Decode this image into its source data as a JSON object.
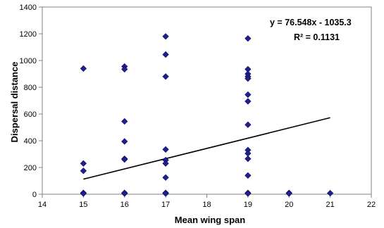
{
  "chart_data": {
    "type": "scatter",
    "xlabel": "Mean wing span",
    "ylabel": "Dispersal distance",
    "xlim": [
      14,
      22
    ],
    "ylim": [
      0,
      1400
    ],
    "x_ticks": [
      "14",
      "15",
      "16",
      "17",
      "18",
      "19",
      "20",
      "21",
      "22"
    ],
    "y_ticks": [
      "0",
      "200",
      "400",
      "600",
      "800",
      "1000",
      "1200",
      "1400"
    ],
    "grid": false,
    "legend": "none",
    "marker_color": "#1f1f8f",
    "trendline": {
      "type": "linear",
      "slope": 76.548,
      "intercept": -1035.3,
      "x_range": [
        15,
        21
      ],
      "equation_label": "y = 76.548x - 1035.3",
      "r2_label": "R² = 0.1131"
    },
    "points": [
      {
        "x": 15,
        "y": 940
      },
      {
        "x": 15,
        "y": 230
      },
      {
        "x": 15,
        "y": 175
      },
      {
        "x": 15,
        "y": 10
      },
      {
        "x": 15,
        "y": 5
      },
      {
        "x": 16,
        "y": 955
      },
      {
        "x": 16,
        "y": 935
      },
      {
        "x": 16,
        "y": 545
      },
      {
        "x": 16,
        "y": 395
      },
      {
        "x": 16,
        "y": 265
      },
      {
        "x": 16,
        "y": 260
      },
      {
        "x": 16,
        "y": 10
      },
      {
        "x": 16,
        "y": 5
      },
      {
        "x": 17,
        "y": 1180
      },
      {
        "x": 17,
        "y": 1045
      },
      {
        "x": 17,
        "y": 880
      },
      {
        "x": 17,
        "y": 335
      },
      {
        "x": 17,
        "y": 255
      },
      {
        "x": 17,
        "y": 230
      },
      {
        "x": 17,
        "y": 125
      },
      {
        "x": 17,
        "y": 10
      },
      {
        "x": 17,
        "y": 5
      },
      {
        "x": 19,
        "y": 1165
      },
      {
        "x": 19,
        "y": 935
      },
      {
        "x": 19,
        "y": 900
      },
      {
        "x": 19,
        "y": 880
      },
      {
        "x": 19,
        "y": 865
      },
      {
        "x": 19,
        "y": 745
      },
      {
        "x": 19,
        "y": 695
      },
      {
        "x": 19,
        "y": 520
      },
      {
        "x": 19,
        "y": 330
      },
      {
        "x": 19,
        "y": 305
      },
      {
        "x": 19,
        "y": 265
      },
      {
        "x": 19,
        "y": 140
      },
      {
        "x": 19,
        "y": 10
      },
      {
        "x": 19,
        "y": 5
      },
      {
        "x": 20,
        "y": 10
      },
      {
        "x": 20,
        "y": 5
      },
      {
        "x": 21,
        "y": 8
      }
    ]
  }
}
